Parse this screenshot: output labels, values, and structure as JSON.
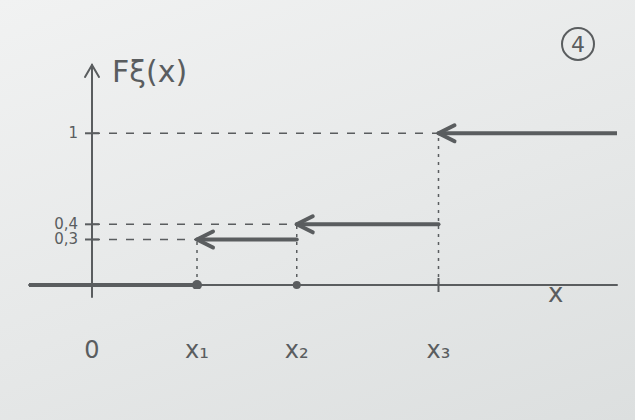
{
  "chart_data": {
    "type": "step",
    "y_label": "Fξ(x)",
    "x_label": "x",
    "annotations": [
      "4"
    ],
    "x": [
      -0.6,
      1,
      1.95,
      3.3
    ],
    "values": [
      0,
      0.3,
      0.4,
      1
    ],
    "color": "#5a5d5f",
    "marker": "arrow",
    "line_style": "solid",
    "xlim": [
      -0.6,
      5.0
    ],
    "ylim": [
      0,
      1.45
    ],
    "xticks": [
      {
        "value": 0,
        "label": "0"
      },
      {
        "value": 1,
        "label": "x₁"
      },
      {
        "value": 1.95,
        "label": "x₂"
      },
      {
        "value": 3.3,
        "label": "x₃"
      }
    ],
    "yticks": [
      {
        "value": 0.3,
        "label": "0,3"
      },
      {
        "value": 0.4,
        "label": "0,4"
      },
      {
        "value": 1,
        "label": "1"
      }
    ],
    "grid": false
  }
}
